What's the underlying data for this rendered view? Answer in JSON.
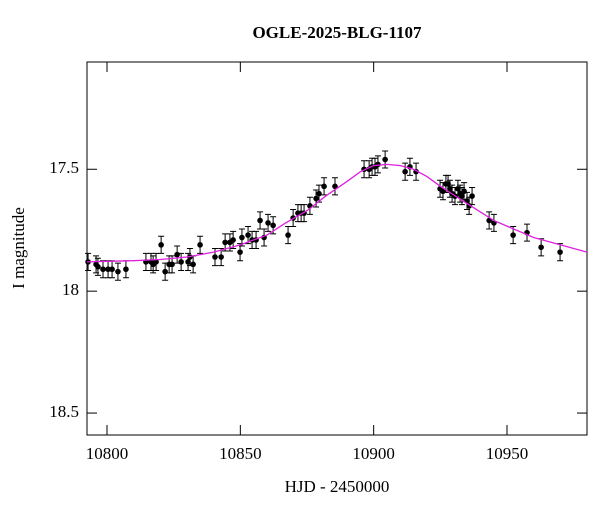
{
  "chart_data": {
    "type": "scatter",
    "title": "OGLE-2025-BLG-1107",
    "x_label": "HJD - 2450000",
    "y_label": "I magnitude",
    "xlim": [
      10792.5,
      10980
    ],
    "ylim": [
      18.59,
      17.06
    ],
    "xticks": [
      10800,
      10850,
      10900,
      10950
    ],
    "yticks": [
      17.5,
      18,
      18.5
    ],
    "series": [
      {
        "type": "scatter",
        "color": "#000000",
        "x": [
          10792.9,
          10795.9,
          10796.6,
          10798.5,
          10800.4,
          10801.9,
          10804.1,
          10807.1,
          10814.6,
          10816.5,
          10817.3,
          10818.4,
          10820.3,
          10821.8,
          10823.3,
          10824.4,
          10826.3,
          10827.8,
          10830.4,
          10831.1,
          10832.3,
          10834.9,
          10840.5,
          10842.8,
          10844.3,
          10846.1,
          10847.3,
          10849.9,
          10850.6,
          10852.9,
          10854.4,
          10855.9,
          10857.4,
          10858.9,
          10860.4,
          10862.3,
          10867.9,
          10869.8,
          10871.6,
          10872.8,
          10873.9,
          10876.1,
          10878.4,
          10879.5,
          10881.4,
          10885.5,
          10896.4,
          10898.3,
          10899.4,
          10900.5,
          10901.6,
          10904.3,
          10911.8,
          10913.6,
          10915.9,
          10924.9,
          10926.0,
          10927.1,
          10927.9,
          10928.6,
          10929.4,
          10930.5,
          10931.6,
          10932.4,
          10933.1,
          10933.9,
          10935.0,
          10935.8,
          10936.9,
          10943.3,
          10945.1,
          10952.3,
          10957.5,
          10962.8,
          10969.9
        ],
        "values": [
          17.88,
          17.89,
          17.9,
          17.91,
          17.91,
          17.91,
          17.92,
          17.91,
          17.88,
          17.88,
          17.89,
          17.88,
          17.81,
          17.92,
          17.89,
          17.89,
          17.85,
          17.88,
          17.88,
          17.86,
          17.89,
          17.81,
          17.86,
          17.86,
          17.8,
          17.8,
          17.79,
          17.84,
          17.78,
          17.77,
          17.79,
          17.79,
          17.71,
          17.78,
          17.72,
          17.73,
          17.77,
          17.7,
          17.68,
          17.68,
          17.68,
          17.65,
          17.62,
          17.6,
          17.57,
          17.57,
          17.5,
          17.5,
          17.49,
          17.49,
          17.48,
          17.46,
          17.51,
          17.49,
          17.51,
          17.58,
          17.59,
          17.56,
          17.56,
          17.58,
          17.6,
          17.61,
          17.58,
          17.6,
          17.61,
          17.59,
          17.63,
          17.65,
          17.61,
          17.71,
          17.72,
          17.77,
          17.76,
          17.82,
          17.84
        ],
        "errors": [
          0.035,
          0.035,
          0.035,
          0.035,
          0.035,
          0.035,
          0.035,
          0.035,
          0.035,
          0.035,
          0.035,
          0.035,
          0.035,
          0.035,
          0.035,
          0.035,
          0.035,
          0.035,
          0.035,
          0.035,
          0.035,
          0.035,
          0.035,
          0.035,
          0.035,
          0.035,
          0.035,
          0.035,
          0.035,
          0.035,
          0.035,
          0.035,
          0.035,
          0.035,
          0.035,
          0.035,
          0.035,
          0.035,
          0.035,
          0.035,
          0.035,
          0.035,
          0.035,
          0.035,
          0.035,
          0.035,
          0.035,
          0.035,
          0.035,
          0.035,
          0.035,
          0.035,
          0.035,
          0.035,
          0.035,
          0.035,
          0.035,
          0.035,
          0.035,
          0.035,
          0.035,
          0.035,
          0.035,
          0.035,
          0.035,
          0.035,
          0.035,
          0.035,
          0.035,
          0.035,
          0.035,
          0.035,
          0.035,
          0.035,
          0.035
        ]
      },
      {
        "type": "line",
        "color": "#e020e0",
        "x": [
          10792.5,
          10810,
          10820,
          10830,
          10840,
          10850,
          10860,
          10867,
          10875,
          10882,
          10890,
          10895,
          10900,
          10905,
          10910,
          10915,
          10920,
          10925,
          10930,
          10935,
          10945,
          10960,
          10980
        ],
        "values": [
          17.88,
          17.875,
          17.87,
          17.86,
          17.84,
          17.81,
          17.77,
          17.72,
          17.67,
          17.61,
          17.55,
          17.51,
          17.485,
          17.48,
          17.485,
          17.5,
          17.53,
          17.57,
          17.605,
          17.64,
          17.71,
          17.78,
          17.84
        ]
      }
    ]
  }
}
